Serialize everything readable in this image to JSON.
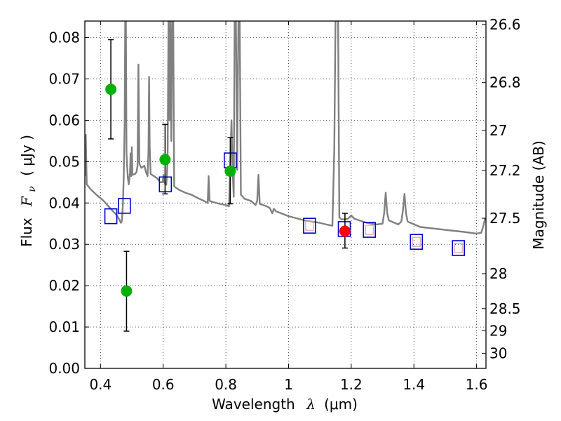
{
  "chart_data": {
    "type": "scatter",
    "xlabel_text": "Wavelength",
    "xlabel_symbol": "λ",
    "xlabel_unit": "(μm)",
    "ylabel_text": "Flux",
    "ylabel_symbol": "F",
    "ylabel_subscript": "ν",
    "ylabel_unit": "( μJy )",
    "y2label": "Magnitude (AB)",
    "xlim": [
      0.35,
      1.63
    ],
    "ylim": [
      0.0,
      0.084
    ],
    "grid": true,
    "x_ticks": [
      0.4,
      0.6,
      0.8,
      1.0,
      1.2,
      1.4,
      1.6
    ],
    "x_tick_labels": [
      "0.4",
      "0.6",
      "0.8",
      "1",
      "1.2",
      "1.4",
      "1.6"
    ],
    "y_ticks": [
      0.0,
      0.01,
      0.02,
      0.03,
      0.04,
      0.05,
      0.06,
      0.07,
      0.08
    ],
    "y_tick_labels": [
      "0.00",
      "0.01",
      "0.02",
      "0.03",
      "0.04",
      "0.05",
      "0.06",
      "0.07",
      "0.08"
    ],
    "y2_ticks": [
      {
        "mag": 26.6,
        "label": "26.6"
      },
      {
        "mag": 26.8,
        "label": "26.8"
      },
      {
        "mag": 27.0,
        "label": "27"
      },
      {
        "mag": 27.2,
        "label": "27.2"
      },
      {
        "mag": 27.5,
        "label": "27.5"
      },
      {
        "mag": 28.0,
        "label": "28"
      },
      {
        "mag": 28.5,
        "label": "28.5"
      },
      {
        "mag": 29.0,
        "label": "29"
      },
      {
        "mag": 30.0,
        "label": "30"
      }
    ],
    "series": [
      {
        "name": "model spectrum",
        "kind": "line",
        "color": "#808080",
        "points": [
          [
            0.35,
            0.0465
          ],
          [
            0.353,
            0.0565
          ],
          [
            0.356,
            0.0445
          ],
          [
            0.37,
            0.0432
          ],
          [
            0.39,
            0.0418
          ],
          [
            0.41,
            0.0405
          ],
          [
            0.43,
            0.0388
          ],
          [
            0.45,
            0.0372
          ],
          [
            0.46,
            0.036
          ],
          [
            0.465,
            0.0352
          ],
          [
            0.468,
            0.0356
          ],
          [
            0.471,
            0.039
          ],
          [
            0.474,
            0.046
          ],
          [
            0.477,
            0.06
          ],
          [
            0.479,
            0.085
          ],
          [
            0.481,
            0.085
          ],
          [
            0.483,
            0.052
          ],
          [
            0.487,
            0.0462
          ],
          [
            0.49,
            0.0445
          ],
          [
            0.494,
            0.0475
          ],
          [
            0.496,
            0.052
          ],
          [
            0.498,
            0.0465
          ],
          [
            0.5,
            0.0535
          ],
          [
            0.502,
            0.0468
          ],
          [
            0.51,
            0.047
          ],
          [
            0.515,
            0.0475
          ],
          [
            0.518,
            0.049
          ],
          [
            0.521,
            0.0735
          ],
          [
            0.524,
            0.0495
          ],
          [
            0.53,
            0.0485
          ],
          [
            0.54,
            0.049
          ],
          [
            0.545,
            0.0475
          ],
          [
            0.55,
            0.0465
          ],
          [
            0.553,
            0.0525
          ],
          [
            0.555,
            0.0705
          ],
          [
            0.557,
            0.0535
          ],
          [
            0.56,
            0.047
          ],
          [
            0.58,
            0.046
          ],
          [
            0.59,
            0.045
          ],
          [
            0.598,
            0.045
          ],
          [
            0.601,
            0.0468
          ],
          [
            0.603,
            0.045
          ],
          [
            0.61,
            0.0444
          ],
          [
            0.614,
            0.05
          ],
          [
            0.617,
            0.085
          ],
          [
            0.62,
            0.06
          ],
          [
            0.623,
            0.085
          ],
          [
            0.626,
            0.055
          ],
          [
            0.629,
            0.085
          ],
          [
            0.632,
            0.085
          ],
          [
            0.635,
            0.044
          ],
          [
            0.65,
            0.0432
          ],
          [
            0.67,
            0.0425
          ],
          [
            0.69,
            0.042
          ],
          [
            0.71,
            0.0412
          ],
          [
            0.73,
            0.0405
          ],
          [
            0.742,
            0.04
          ],
          [
            0.745,
            0.0465
          ],
          [
            0.748,
            0.0405
          ],
          [
            0.76,
            0.0402
          ],
          [
            0.78,
            0.0398
          ],
          [
            0.8,
            0.0395
          ],
          [
            0.81,
            0.0392
          ],
          [
            0.814,
            0.05
          ],
          [
            0.818,
            0.06
          ],
          [
            0.821,
            0.049
          ],
          [
            0.825,
            0.0415
          ],
          [
            0.828,
            0.085
          ],
          [
            0.832,
            0.085
          ],
          [
            0.836,
            0.048
          ],
          [
            0.84,
            0.085
          ],
          [
            0.844,
            0.085
          ],
          [
            0.848,
            0.042
          ],
          [
            0.86,
            0.041
          ],
          [
            0.88,
            0.0405
          ],
          [
            0.895,
            0.0395
          ],
          [
            0.9,
            0.0405
          ],
          [
            0.904,
            0.0468
          ],
          [
            0.908,
            0.0398
          ],
          [
            0.93,
            0.0392
          ],
          [
            0.94,
            0.0388
          ],
          [
            0.948,
            0.0375
          ],
          [
            0.953,
            0.0386
          ],
          [
            0.96,
            0.038
          ],
          [
            1.0,
            0.0368
          ],
          [
            1.05,
            0.0358
          ],
          [
            1.1,
            0.0352
          ],
          [
            1.12,
            0.0348
          ],
          [
            1.14,
            0.0345
          ],
          [
            1.146,
            0.053
          ],
          [
            1.15,
            0.085
          ],
          [
            1.158,
            0.085
          ],
          [
            1.162,
            0.0365
          ],
          [
            1.17,
            0.036
          ],
          [
            1.19,
            0.0362
          ],
          [
            1.2,
            0.037
          ],
          [
            1.21,
            0.0362
          ],
          [
            1.25,
            0.0352
          ],
          [
            1.28,
            0.0348
          ],
          [
            1.3,
            0.035
          ],
          [
            1.305,
            0.0375
          ],
          [
            1.31,
            0.0425
          ],
          [
            1.315,
            0.0375
          ],
          [
            1.32,
            0.0358
          ],
          [
            1.35,
            0.0348
          ],
          [
            1.36,
            0.0355
          ],
          [
            1.365,
            0.0382
          ],
          [
            1.37,
            0.0422
          ],
          [
            1.375,
            0.0375
          ],
          [
            1.38,
            0.0355
          ],
          [
            1.42,
            0.0342
          ],
          [
            1.5,
            0.0335
          ],
          [
            1.56,
            0.033
          ],
          [
            1.6,
            0.0326
          ],
          [
            1.615,
            0.0328
          ],
          [
            1.622,
            0.0345
          ],
          [
            1.627,
            0.0362
          ],
          [
            1.63,
            0.0358
          ]
        ]
      },
      {
        "name": "green observed photometry",
        "kind": "errorbar-points",
        "color": "#00b000",
        "points": [
          {
            "x": 0.433,
            "y": 0.0675,
            "lo": 0.0555,
            "hi": 0.0795
          },
          {
            "x": 0.483,
            "y": 0.0187,
            "lo": 0.009,
            "hi": 0.0283
          },
          {
            "x": 0.606,
            "y": 0.0505,
            "lo": 0.0422,
            "hi": 0.059
          },
          {
            "x": 0.814,
            "y": 0.0477,
            "lo": 0.0398,
            "hi": 0.0558
          }
        ]
      },
      {
        "name": "red observed photometry",
        "kind": "errorbar-points",
        "color": "#ff0000",
        "points": [
          {
            "x": 1.18,
            "y": 0.0332,
            "lo": 0.0291,
            "hi": 0.0375
          }
        ]
      },
      {
        "name": "blue model photometry",
        "kind": "open-squares",
        "color": "#0000cc",
        "points": [
          [
            0.433,
            0.0368
          ],
          [
            0.476,
            0.0393
          ],
          [
            0.607,
            0.0445
          ],
          [
            0.814,
            0.0503
          ],
          [
            1.067,
            0.0345
          ],
          [
            1.178,
            0.0337
          ],
          [
            1.258,
            0.0335
          ],
          [
            1.408,
            0.0306
          ],
          [
            1.542,
            0.0291
          ]
        ]
      },
      {
        "name": "red model photometry",
        "kind": "open-squares-small",
        "color": "#e8a0a0",
        "points": [
          [
            1.067,
            0.0345
          ],
          [
            1.258,
            0.0335
          ],
          [
            1.408,
            0.0306
          ],
          [
            1.542,
            0.0291
          ]
        ]
      }
    ]
  }
}
